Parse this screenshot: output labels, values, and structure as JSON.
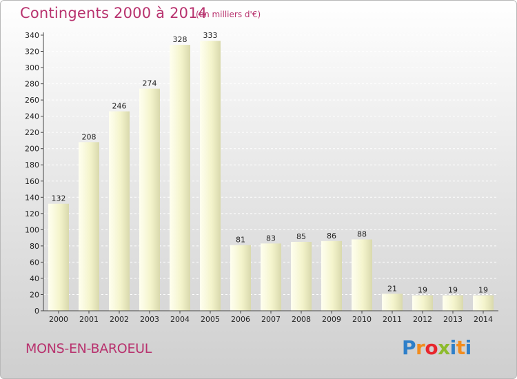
{
  "header": {
    "title": "Contingents 2000 à 2014",
    "subtitle": "(en milliers d'€)"
  },
  "footer": {
    "commune": "MONS-EN-BAROEUL",
    "logo_text": [
      "P",
      "r",
      "o",
      "x",
      "i",
      "t",
      "i"
    ]
  },
  "colors": {
    "title": "#b8326e",
    "bar_light": "#fbfbe0",
    "bar_dark": "#d6d6a8"
  },
  "chart_data": {
    "type": "bar",
    "title": "Contingents 2000 à 2014",
    "subtitle": "(en milliers d'€)",
    "xlabel": "",
    "ylabel": "",
    "categories": [
      "2000",
      "2001",
      "2002",
      "2003",
      "2004",
      "2005",
      "2006",
      "2007",
      "2008",
      "2009",
      "2010",
      "2011",
      "2012",
      "2013",
      "2014"
    ],
    "values": [
      132,
      208,
      246,
      274,
      328,
      333,
      81,
      83,
      85,
      86,
      88,
      21,
      19,
      19,
      19
    ],
    "ylim": [
      0,
      340
    ],
    "yticks": [
      0,
      20,
      40,
      60,
      80,
      100,
      120,
      140,
      160,
      180,
      200,
      220,
      240,
      260,
      280,
      300,
      320,
      340
    ],
    "grid": true
  }
}
